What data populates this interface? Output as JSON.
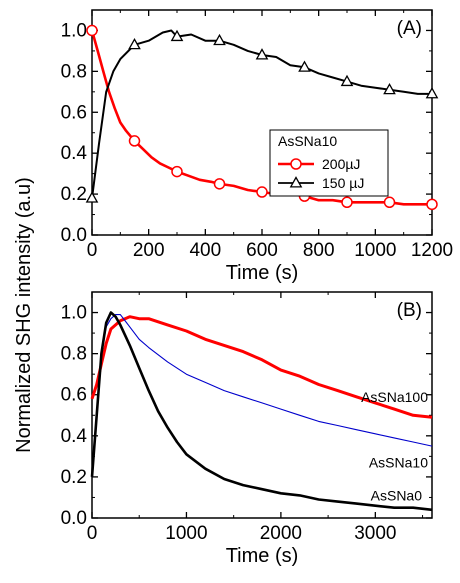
{
  "ylabel": "Normalized SHG intensity (a.u)",
  "chart_data": [
    {
      "type": "line",
      "panel_label": "(A)",
      "xlabel": "Time (s)",
      "xlim": [
        0,
        1200
      ],
      "ylim": [
        0.0,
        1.1
      ],
      "xticks": [
        0,
        200,
        400,
        600,
        800,
        1000,
        1200
      ],
      "yticks": [
        "0.0",
        "0.2",
        "0.4",
        "0.6",
        "0.8",
        "1.0"
      ],
      "yticks_values": [
        0.0,
        0.2,
        0.4,
        0.6,
        0.8,
        1.0
      ],
      "legend": {
        "title": "AsSNa10",
        "placement": "center-right"
      },
      "series": [
        {
          "name": "200µJ",
          "color": "#ff0000",
          "marker": "circle",
          "x": [
            0,
            20,
            40,
            60,
            80,
            100,
            120,
            150,
            180,
            210,
            240,
            270,
            300,
            340,
            380,
            420,
            450,
            500,
            550,
            600,
            650,
            700,
            750,
            800,
            850,
            900,
            950,
            1000,
            1050,
            1100,
            1150,
            1200
          ],
          "y": [
            1.0,
            0.9,
            0.8,
            0.7,
            0.62,
            0.55,
            0.51,
            0.46,
            0.42,
            0.38,
            0.35,
            0.33,
            0.31,
            0.29,
            0.27,
            0.26,
            0.25,
            0.24,
            0.22,
            0.21,
            0.2,
            0.2,
            0.19,
            0.17,
            0.17,
            0.16,
            0.16,
            0.16,
            0.16,
            0.15,
            0.15,
            0.15
          ],
          "marker_x": [
            0,
            150,
            300,
            450,
            600,
            750,
            900,
            1050,
            1200
          ],
          "marker_y": [
            1.0,
            0.46,
            0.31,
            0.25,
            0.21,
            0.19,
            0.16,
            0.16,
            0.15
          ]
        },
        {
          "name": "150 µJ",
          "color": "#000000",
          "marker": "triangle",
          "x": [
            0,
            25,
            50,
            75,
            100,
            150,
            200,
            250,
            280,
            300,
            350,
            400,
            450,
            500,
            550,
            600,
            650,
            700,
            750,
            800,
            850,
            900,
            950,
            1000,
            1050,
            1100,
            1150,
            1200
          ],
          "y": [
            0.18,
            0.45,
            0.7,
            0.8,
            0.86,
            0.93,
            0.95,
            0.99,
            1.0,
            0.97,
            0.98,
            0.95,
            0.95,
            0.93,
            0.9,
            0.88,
            0.87,
            0.83,
            0.82,
            0.79,
            0.77,
            0.75,
            0.73,
            0.72,
            0.71,
            0.7,
            0.69,
            0.69
          ],
          "marker_x": [
            0,
            150,
            300,
            450,
            600,
            750,
            900,
            1050,
            1200
          ],
          "marker_y": [
            0.18,
            0.93,
            0.97,
            0.95,
            0.88,
            0.82,
            0.75,
            0.71,
            0.69
          ]
        }
      ]
    },
    {
      "type": "line",
      "panel_label": "(B)",
      "xlabel": "Time (s)",
      "xlim": [
        0,
        3600
      ],
      "ylim": [
        0.0,
        1.1
      ],
      "xticks": [
        0,
        1000,
        2000,
        3000
      ],
      "yticks": [
        "0.0",
        "0.2",
        "0.4",
        "0.6",
        "0.8",
        "1.0"
      ],
      "yticks_values": [
        0.0,
        0.2,
        0.4,
        0.6,
        0.8,
        1.0
      ],
      "series": [
        {
          "name": "AsSNa100",
          "color": "#ff0000",
          "x": [
            0,
            50,
            100,
            150,
            200,
            300,
            400,
            500,
            600,
            800,
            1000,
            1200,
            1400,
            1600,
            1800,
            2000,
            2200,
            2400,
            2600,
            2800,
            3000,
            3200,
            3400,
            3600
          ],
          "y": [
            0.58,
            0.65,
            0.75,
            0.85,
            0.92,
            0.96,
            0.98,
            0.97,
            0.97,
            0.94,
            0.91,
            0.87,
            0.84,
            0.81,
            0.77,
            0.72,
            0.69,
            0.65,
            0.62,
            0.59,
            0.56,
            0.53,
            0.5,
            0.49
          ]
        },
        {
          "name": "AsSNa10",
          "color": "#0000cc",
          "x": [
            0,
            50,
            100,
            150,
            200,
            250,
            300,
            400,
            500,
            600,
            800,
            1000,
            1200,
            1400,
            1600,
            1800,
            2000,
            2200,
            2400,
            2600,
            2800,
            3000,
            3200,
            3400,
            3600
          ],
          "y": [
            0.2,
            0.5,
            0.8,
            0.93,
            0.97,
            0.99,
            0.99,
            0.93,
            0.87,
            0.83,
            0.76,
            0.7,
            0.66,
            0.62,
            0.59,
            0.56,
            0.53,
            0.5,
            0.47,
            0.45,
            0.43,
            0.41,
            0.39,
            0.37,
            0.35
          ]
        },
        {
          "name": "AsSNa0",
          "color": "#000000",
          "x": [
            0,
            50,
            100,
            150,
            200,
            250,
            300,
            400,
            500,
            600,
            700,
            800,
            900,
            1000,
            1200,
            1400,
            1600,
            1800,
            2000,
            2200,
            2400,
            2600,
            2800,
            3000,
            3200,
            3400,
            3600
          ],
          "y": [
            0.2,
            0.5,
            0.8,
            0.95,
            1.0,
            0.98,
            0.94,
            0.84,
            0.73,
            0.62,
            0.52,
            0.44,
            0.37,
            0.31,
            0.24,
            0.19,
            0.16,
            0.14,
            0.12,
            0.11,
            0.09,
            0.08,
            0.07,
            0.06,
            0.05,
            0.05,
            0.04
          ]
        }
      ]
    }
  ]
}
